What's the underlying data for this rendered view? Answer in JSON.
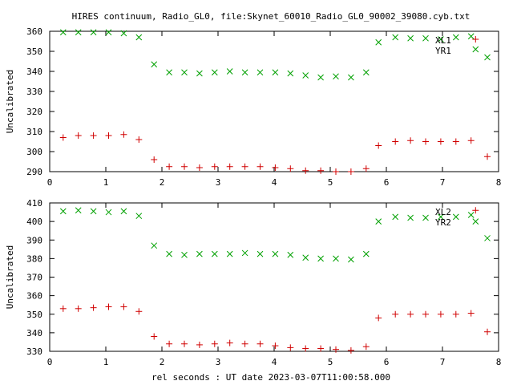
{
  "title": "HIRES continuum, Radio_GL0, file:Skynet_60010_Radio_GL0_90002_39080.cyb.txt",
  "xlabel": "rel seconds : UT date 2023-03-07T11:00:58.000",
  "colors": {
    "green": "#00a000",
    "red": "#d00000",
    "axis": "#000000"
  },
  "chart_data": [
    {
      "type": "scatter",
      "title": "HIRES continuum, Radio_GL0, file:Skynet_60010_Radio_GL0_90002_39080.cyb.txt",
      "xlabel": "",
      "ylabel": "Uncalibrated",
      "xlim": [
        0,
        8
      ],
      "ylim": [
        290,
        360
      ],
      "xticks": [
        0,
        1,
        2,
        3,
        4,
        5,
        6,
        7,
        8
      ],
      "yticks": [
        290,
        300,
        310,
        320,
        330,
        340,
        350,
        360
      ],
      "grid": false,
      "legend_position": "top-right",
      "series": [
        {
          "name": "XL1",
          "marker": "x",
          "color": "#00a000",
          "x": [
            0.24,
            0.51,
            0.78,
            1.05,
            1.32,
            1.59,
            1.86,
            2.13,
            2.4,
            2.67,
            2.94,
            3.21,
            3.48,
            3.75,
            4.02,
            4.29,
            4.56,
            4.83,
            5.1,
            5.37,
            5.64,
            5.86,
            6.16,
            6.43,
            6.7,
            6.97,
            7.24,
            7.51,
            7.59,
            7.8
          ],
          "y": [
            359.5,
            359.5,
            359.5,
            359.5,
            359.0,
            357.0,
            343.5,
            339.5,
            339.5,
            339.0,
            339.5,
            340.0,
            339.5,
            339.5,
            339.5,
            339.0,
            338.0,
            337.0,
            337.5,
            337.0,
            339.5,
            354.5,
            357.0,
            356.5,
            356.5,
            356.0,
            357.0,
            357.5,
            351.0,
            347.0
          ]
        },
        {
          "name": "YR1",
          "marker": "+",
          "color": "#d00000",
          "x": [
            0.24,
            0.51,
            0.78,
            1.05,
            1.32,
            1.59,
            1.86,
            2.13,
            2.4,
            2.67,
            2.94,
            3.21,
            3.48,
            3.75,
            4.02,
            4.29,
            4.56,
            4.83,
            5.1,
            5.37,
            5.64,
            5.86,
            6.16,
            6.43,
            6.7,
            6.97,
            7.24,
            7.51,
            7.59,
            7.8
          ],
          "y": [
            307.0,
            308.0,
            308.0,
            308.0,
            308.5,
            306.0,
            296.0,
            292.5,
            292.5,
            292.0,
            292.5,
            292.5,
            292.5,
            292.5,
            292.0,
            291.5,
            290.5,
            290.5,
            290.0,
            290.0,
            291.5,
            303.0,
            305.0,
            305.5,
            305.0,
            305.0,
            305.0,
            305.5,
            356.0,
            297.5
          ]
        }
      ]
    },
    {
      "type": "scatter",
      "title": "",
      "xlabel": "rel seconds : UT date 2023-03-07T11:00:58.000",
      "ylabel": "Uncalibrated",
      "xlim": [
        0,
        8
      ],
      "ylim": [
        330,
        410
      ],
      "xticks": [
        0,
        1,
        2,
        3,
        4,
        5,
        6,
        7,
        8
      ],
      "yticks": [
        330,
        340,
        350,
        360,
        370,
        380,
        390,
        400,
        410
      ],
      "grid": false,
      "legend_position": "top-right",
      "series": [
        {
          "name": "XL2",
          "marker": "x",
          "color": "#00a000",
          "x": [
            0.24,
            0.51,
            0.78,
            1.05,
            1.32,
            1.59,
            1.86,
            2.13,
            2.4,
            2.67,
            2.94,
            3.21,
            3.48,
            3.75,
            4.02,
            4.29,
            4.56,
            4.83,
            5.1,
            5.37,
            5.64,
            5.86,
            6.16,
            6.43,
            6.7,
            6.97,
            7.24,
            7.51,
            7.59,
            7.8
          ],
          "y": [
            405.5,
            406.0,
            405.5,
            405.0,
            405.5,
            403.0,
            387.0,
            382.5,
            382.0,
            382.5,
            382.5,
            382.5,
            383.0,
            382.5,
            382.5,
            382.0,
            380.5,
            380.0,
            380.0,
            379.5,
            382.5,
            400.0,
            402.5,
            402.0,
            402.0,
            402.5,
            402.5,
            403.5,
            400.0,
            391.0
          ]
        },
        {
          "name": "YR2",
          "marker": "+",
          "color": "#d00000",
          "x": [
            0.24,
            0.51,
            0.78,
            1.05,
            1.32,
            1.59,
            1.86,
            2.13,
            2.4,
            2.67,
            2.94,
            3.21,
            3.48,
            3.75,
            4.02,
            4.29,
            4.56,
            4.83,
            5.1,
            5.37,
            5.64,
            5.86,
            6.16,
            6.43,
            6.7,
            6.97,
            7.24,
            7.51,
            7.59,
            7.8
          ],
          "y": [
            353.0,
            353.0,
            353.5,
            354.0,
            354.0,
            351.5,
            338.0,
            334.0,
            334.0,
            333.5,
            334.0,
            334.5,
            334.0,
            334.0,
            333.0,
            332.0,
            331.5,
            331.5,
            331.0,
            330.5,
            332.5,
            348.0,
            350.0,
            350.0,
            350.0,
            350.0,
            350.0,
            350.5,
            406.0,
            340.5
          ]
        }
      ]
    }
  ]
}
